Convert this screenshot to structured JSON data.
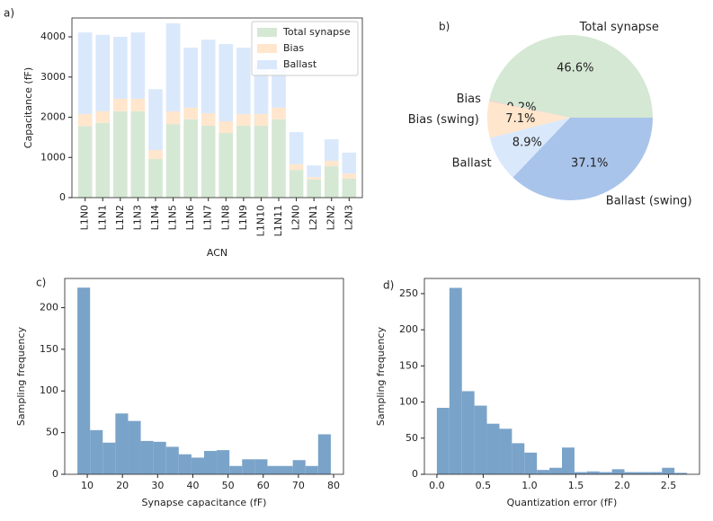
{
  "chart_data": [
    {
      "type": "bar",
      "label": "a)",
      "ylabel": "Capacitance (fF)",
      "xlabel": "ACN",
      "categories": [
        "L1N0",
        "L1N1",
        "L1N2",
        "L1N3",
        "L1N4",
        "L1N5",
        "L1N6",
        "L1N7",
        "L1N8",
        "L1N9",
        "L1N10",
        "L1N11",
        "L2N0",
        "L2N1",
        "L2N2",
        "L2N3"
      ],
      "series": [
        {
          "name": "Total synapse",
          "color": "#d5e8d4",
          "values": [
            1780,
            1860,
            2150,
            2150,
            960,
            1830,
            1950,
            1790,
            1610,
            1790,
            1790,
            1950,
            690,
            450,
            780,
            470
          ]
        },
        {
          "name": "Bias",
          "color": "#ffe6cc",
          "values": [
            300,
            290,
            310,
            310,
            225,
            315,
            290,
            310,
            290,
            290,
            290,
            290,
            140,
            60,
            135,
            130
          ]
        },
        {
          "name": "Ballast",
          "color": "#dae8fc",
          "values": [
            2030,
            1900,
            1540,
            1650,
            1515,
            2190,
            1490,
            1830,
            1920,
            1650,
            1180,
            1025,
            800,
            290,
            535,
            520
          ]
        }
      ],
      "stacked": true,
      "legend": "upper right",
      "ylim": [
        0,
        4470
      ],
      "yticks": [
        0,
        1000,
        2000,
        3000,
        4000
      ]
    },
    {
      "type": "pie",
      "label": "b)",
      "categories": [
        "Total synapse",
        "Bias",
        "Bias (swing)",
        "Ballast",
        "Ballast (swing)"
      ],
      "values": [
        46.6,
        0.2,
        7.1,
        8.9,
        37.1
      ],
      "value_labels": [
        "46.6%",
        "0.2%",
        "7.1%",
        "8.9%",
        "37.1%"
      ],
      "colors": [
        "#d5e8d4",
        "#f8cecc",
        "#ffe6cc",
        "#dae8fc",
        "#a9c4eb"
      ],
      "start_angle": 0
    },
    {
      "type": "histogram",
      "label": "c)",
      "xlabel": "Synapse capacitance (fF)",
      "ylabel": "Sampling frequency",
      "color": "#7aa3c9",
      "bins": [
        7.2,
        10.8,
        14.4,
        18,
        21.6,
        25.2,
        28.8,
        32.4,
        36,
        39.6,
        43.2,
        46.8,
        50.4,
        54,
        57.6,
        61.2,
        64.8,
        68.4,
        72,
        75.6,
        79.2
      ],
      "values": [
        224,
        53,
        38,
        73,
        64,
        40,
        39,
        33,
        24,
        20,
        28,
        29,
        10,
        18,
        18,
        10,
        10,
        17,
        10,
        48
      ],
      "xlim": [
        3.6,
        82.8
      ],
      "xticks": [
        10,
        20,
        30,
        40,
        50,
        60,
        70,
        80
      ],
      "ylim": [
        0,
        235
      ],
      "yticks": [
        0,
        50,
        100,
        150,
        200
      ]
    },
    {
      "type": "histogram",
      "label": "d)",
      "xlabel": "Quantization error (fF)",
      "ylabel": "Sampling frequency",
      "color": "#7aa3c9",
      "bins": [
        0,
        0.135,
        0.27,
        0.405,
        0.54,
        0.675,
        0.81,
        0.945,
        1.08,
        1.215,
        1.35,
        1.485,
        1.62,
        1.755,
        1.89,
        2.025,
        2.16,
        2.295,
        2.43,
        2.565,
        2.7
      ],
      "values": [
        92,
        258,
        115,
        95,
        70,
        63,
        43,
        30,
        6,
        9,
        37,
        3,
        4,
        3,
        7,
        3,
        3,
        3,
        9,
        2
      ],
      "xlim": [
        -0.135,
        2.835
      ],
      "xticks": [
        {
          "value": 0,
          "label": "0.0"
        },
        {
          "value": 0.5,
          "label": "0.5"
        },
        {
          "value": 1,
          "label": "1.0"
        },
        {
          "value": 1.5,
          "label": "1.5"
        },
        {
          "value": 2,
          "label": "2.0"
        },
        {
          "value": 2.5,
          "label": "2.5"
        }
      ],
      "ylim": [
        0,
        271
      ],
      "yticks": [
        0,
        50,
        100,
        150,
        200,
        250
      ]
    }
  ]
}
